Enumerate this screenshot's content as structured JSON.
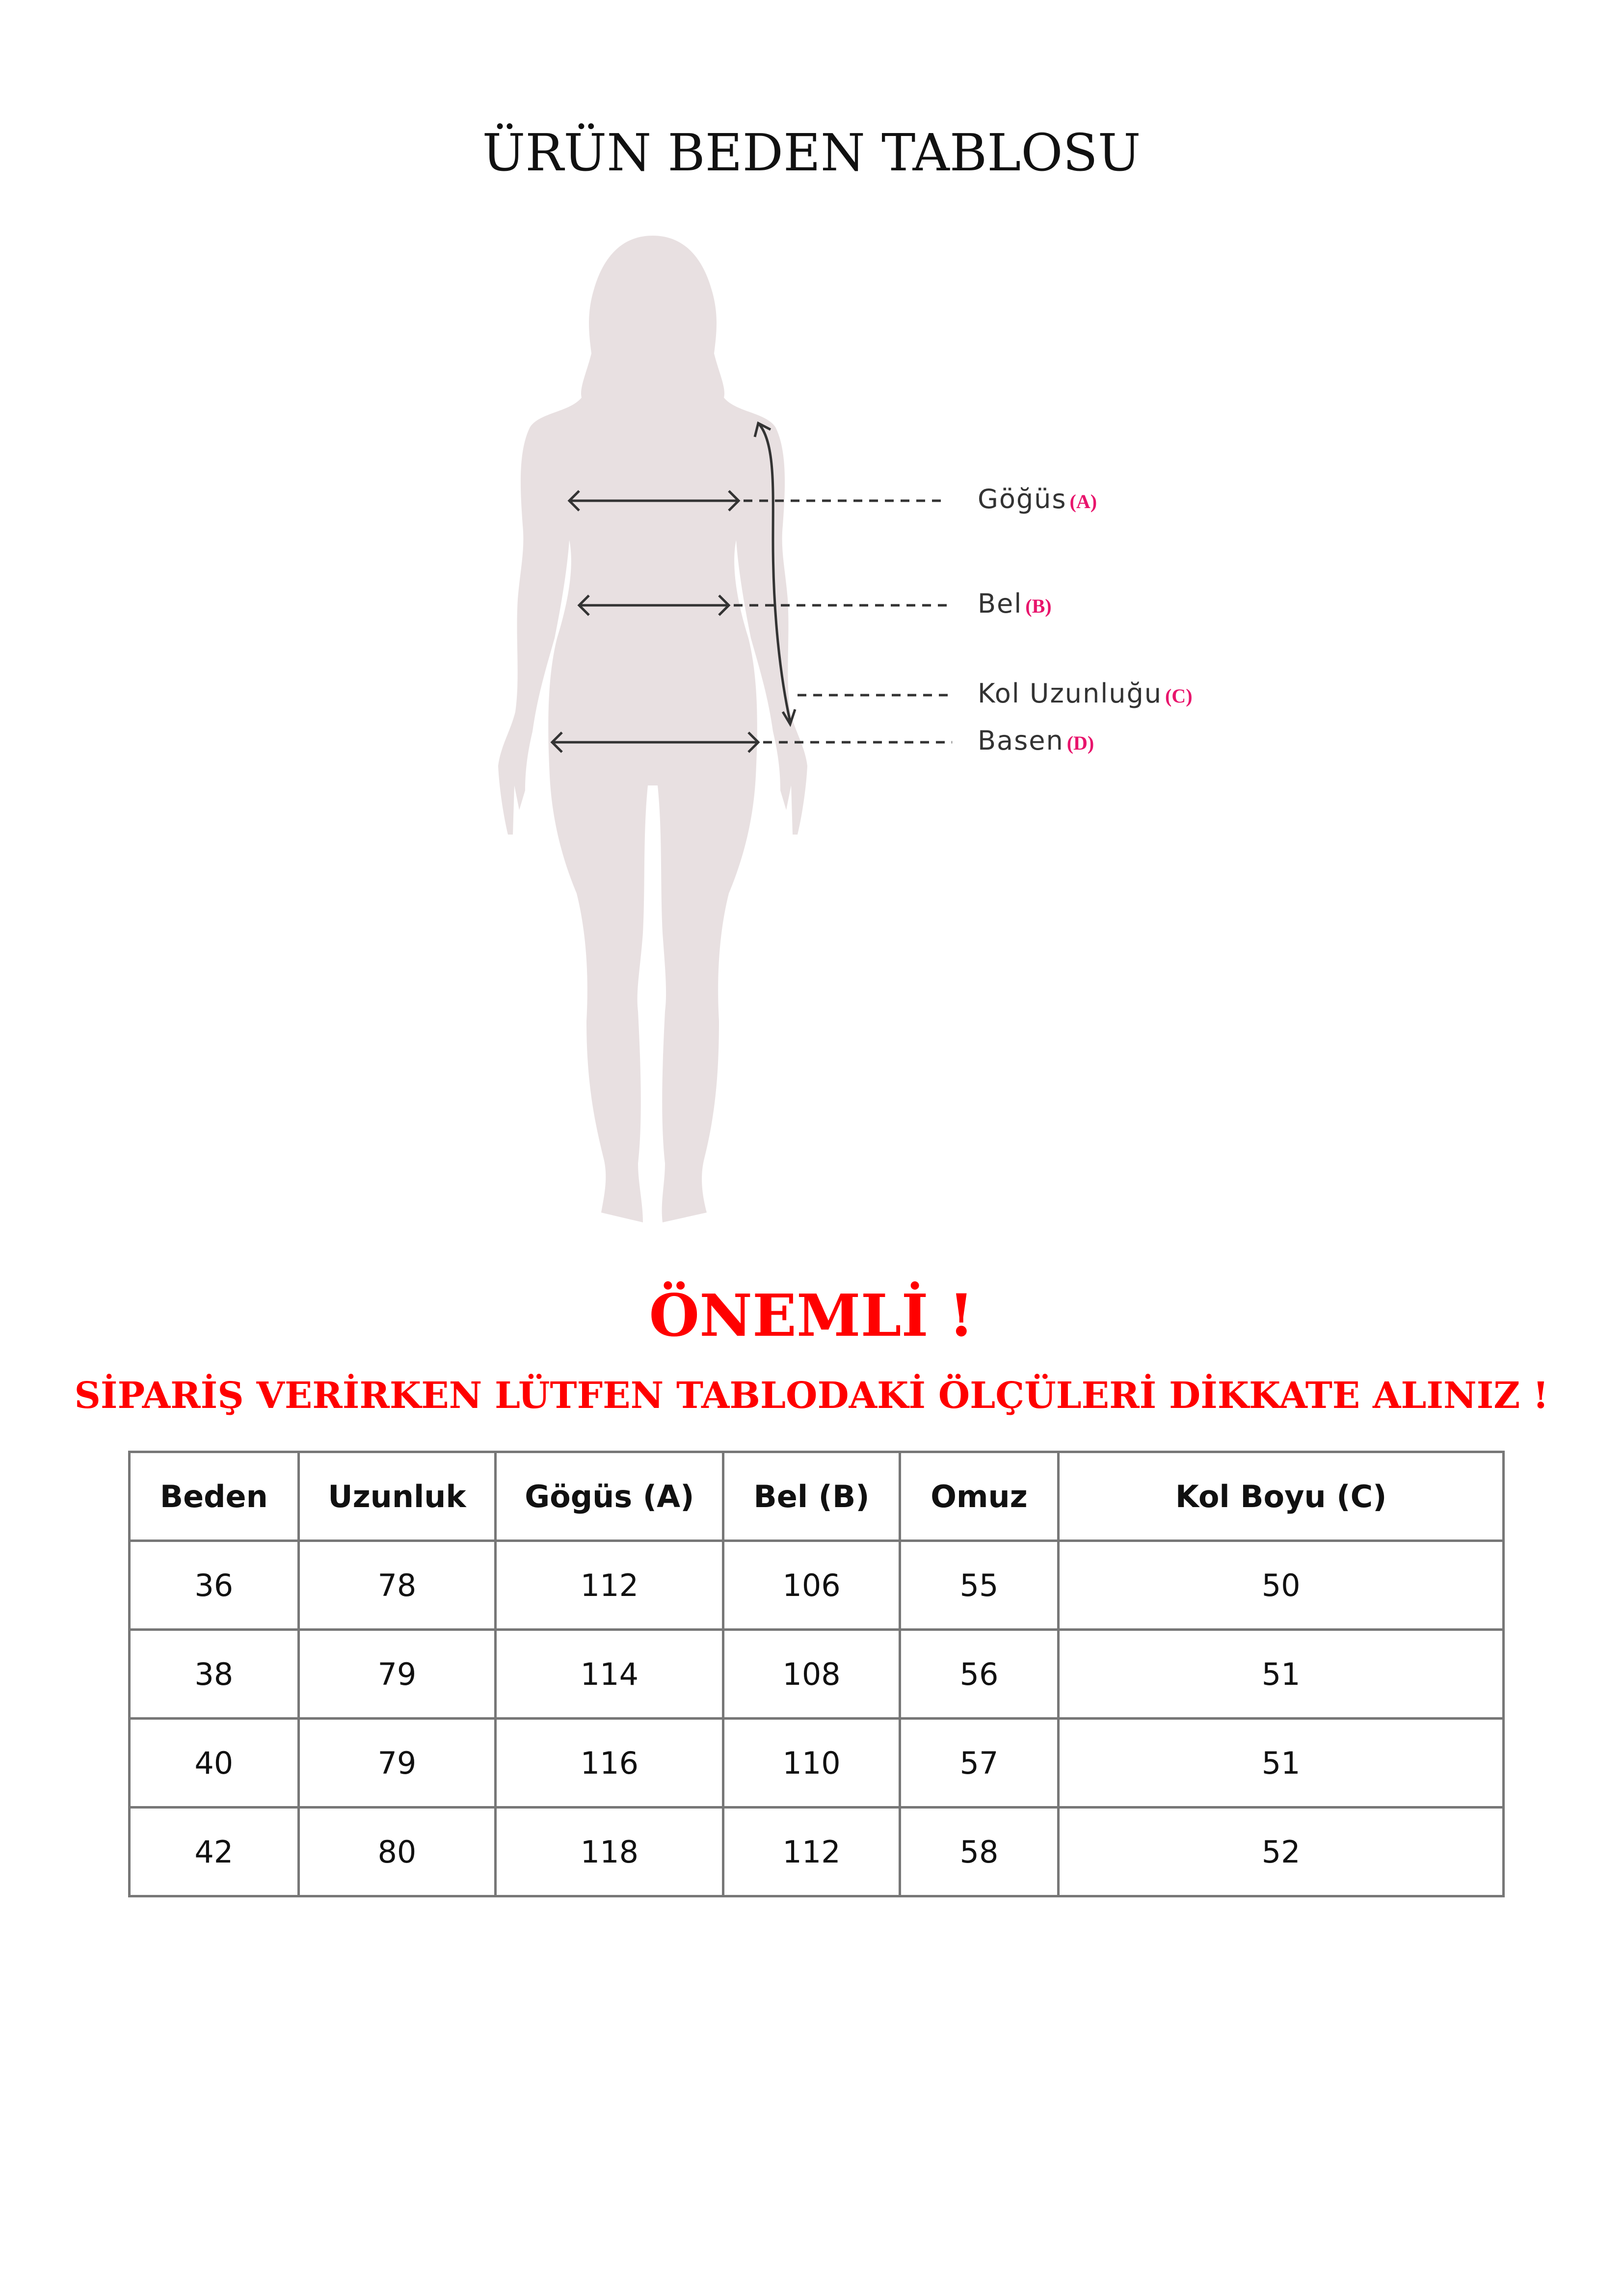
{
  "title": "ÜRÜN BEDEN TABLOSU",
  "figure": {
    "silhouette_color": "#e8e0e1",
    "measurements": [
      {
        "label": "Göğüs",
        "code": "(A)"
      },
      {
        "label": "Bel",
        "code": "(B)"
      },
      {
        "label": "Kol Uzunluğu",
        "code": "(C)"
      },
      {
        "label": "Basen",
        "code": "(D)"
      }
    ]
  },
  "notice": {
    "heading": "ÖNEMLİ !",
    "text": "SİPARİŞ VERİRKEN LÜTFEN TABLODAKİ ÖLÇÜLERİ DİKKATE ALINIZ !",
    "color": "#ff0000"
  },
  "size_table": {
    "headers": [
      "Beden",
      "Uzunluk",
      "Gögüs (A)",
      "Bel (B)",
      "Omuz",
      "Kol Boyu (C)"
    ],
    "rows": [
      [
        "36",
        "78",
        "112",
        "106",
        "55",
        "50"
      ],
      [
        "38",
        "79",
        "114",
        "108",
        "56",
        "51"
      ],
      [
        "40",
        "79",
        "116",
        "110",
        "57",
        "51"
      ],
      [
        "42",
        "80",
        "118",
        "112",
        "58",
        "52"
      ]
    ]
  }
}
